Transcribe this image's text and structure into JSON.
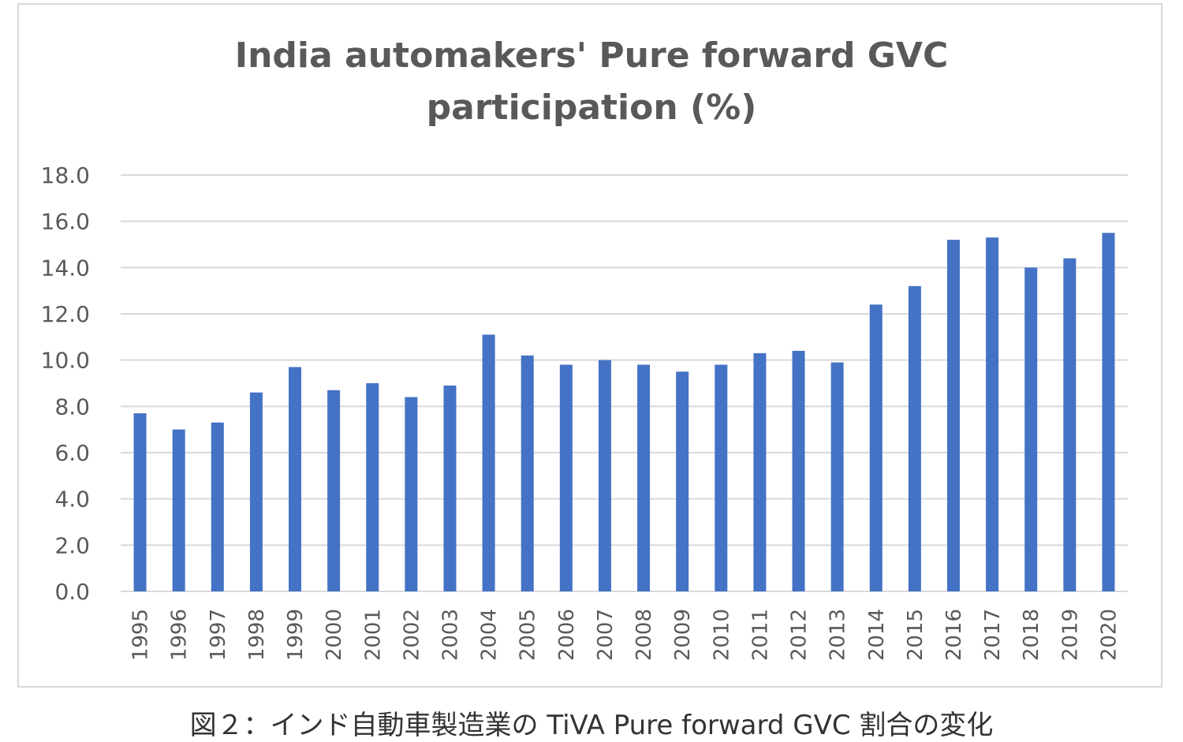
{
  "chart_data": {
    "type": "bar",
    "title_lines": [
      "India automakers' Pure forward GVC",
      "participation (%)"
    ],
    "categories": [
      "1995",
      "1996",
      "1997",
      "1998",
      "1999",
      "2000",
      "2001",
      "2002",
      "2003",
      "2004",
      "2005",
      "2006",
      "2007",
      "2008",
      "2009",
      "2010",
      "2011",
      "2012",
      "2013",
      "2014",
      "2015",
      "2016",
      "2017",
      "2018",
      "2019",
      "2020"
    ],
    "values": [
      7.7,
      7.0,
      7.3,
      8.6,
      9.7,
      8.7,
      9.0,
      8.4,
      8.9,
      11.1,
      10.2,
      9.8,
      10.0,
      9.8,
      9.5,
      9.8,
      10.3,
      10.4,
      9.9,
      12.4,
      13.2,
      15.2,
      15.3,
      14.0,
      14.4,
      15.5
    ],
    "yticks": [
      "0.0",
      "2.0",
      "4.0",
      "6.0",
      "8.0",
      "10.0",
      "12.0",
      "14.0",
      "16.0",
      "18.0"
    ],
    "ylim": [
      0,
      18
    ],
    "bar_color": "#4472c4",
    "grid": true,
    "legend": "none"
  },
  "caption": "図２：インド自動車製造業の TiVA Pure forward GVC 割合の変化"
}
